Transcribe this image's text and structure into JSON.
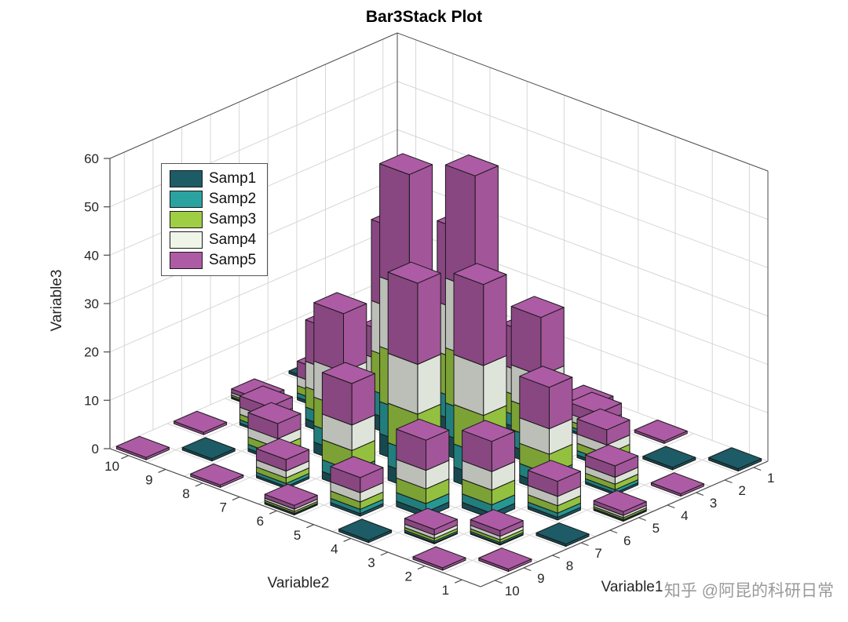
{
  "figure": {
    "background": "#ffffff"
  },
  "watermark": {
    "text": "知乎 @阿昆的科研日常"
  },
  "chart_data": {
    "type": "bar3-stacked",
    "title": "Bar3Stack Plot",
    "xlabel": "Variable1",
    "ylabel": "Variable2",
    "zlabel": "Variable3",
    "x_ticks": [
      1,
      2,
      3,
      4,
      5,
      6,
      7,
      8,
      9,
      10
    ],
    "y_ticks": [
      1,
      2,
      3,
      4,
      5,
      6,
      7,
      8,
      9,
      10
    ],
    "z_ticks": [
      0,
      10,
      20,
      30,
      40,
      50,
      60
    ],
    "zlim": [
      0,
      60
    ],
    "grid": true,
    "legend_position": "top-left-inside",
    "edge_color": "#1a1a1a",
    "grid_color": "#d6d6d6",
    "axis_color": "#4a4a4a",
    "series": [
      {
        "name": "Samp1",
        "color": "#1d5c66"
      },
      {
        "name": "Samp2",
        "color": "#2aa2a0"
      },
      {
        "name": "Samp3",
        "color": "#9fce44"
      },
      {
        "name": "Samp4",
        "color": "#f0f5ea"
      },
      {
        "name": "Samp5",
        "color": "#ae5ba5"
      }
    ],
    "stack_fractions": [
      0.07,
      0.11,
      0.19,
      0.24,
      0.39
    ],
    "totals_note": "rows are Variable2 = 1..10 (front to back-left), cols are Variable1 = 1..10; 0.5 = flat floor tile, 0 = empty cell",
    "totals": [
      [
        0.5,
        0,
        0.5,
        0,
        2,
        0,
        0.5,
        0,
        0.5,
        0
      ],
      [
        0,
        0.5,
        0,
        6,
        0,
        8,
        0,
        3,
        0,
        0.5
      ],
      [
        0.5,
        0,
        8,
        0,
        22,
        0,
        16,
        0,
        3,
        0
      ],
      [
        0,
        6,
        0,
        31,
        0,
        43,
        0,
        16,
        0,
        0.5
      ],
      [
        2,
        0,
        22,
        0,
        60,
        0,
        43,
        0,
        8,
        0
      ],
      [
        0,
        8,
        0,
        43,
        0,
        60,
        0,
        22,
        0,
        2
      ],
      [
        0.5,
        0,
        16,
        0,
        43,
        0,
        31,
        0,
        6,
        0
      ],
      [
        0,
        3,
        0,
        16,
        0,
        22,
        0,
        8,
        0,
        0.5
      ],
      [
        0.5,
        0,
        3,
        0,
        8,
        0,
        6,
        0,
        0.5,
        0
      ],
      [
        0,
        0.5,
        0,
        0.5,
        0,
        2,
        0,
        0.5,
        0,
        0.5
      ]
    ],
    "flat_tile_height": 0.5,
    "teal_tiles": [
      [
        1,
        1
      ],
      [
        7,
        1
      ],
      [
        2,
        2
      ],
      [
        1,
        7
      ],
      [
        9,
        9
      ],
      [
        4,
        10
      ],
      [
        10,
        4
      ]
    ]
  }
}
